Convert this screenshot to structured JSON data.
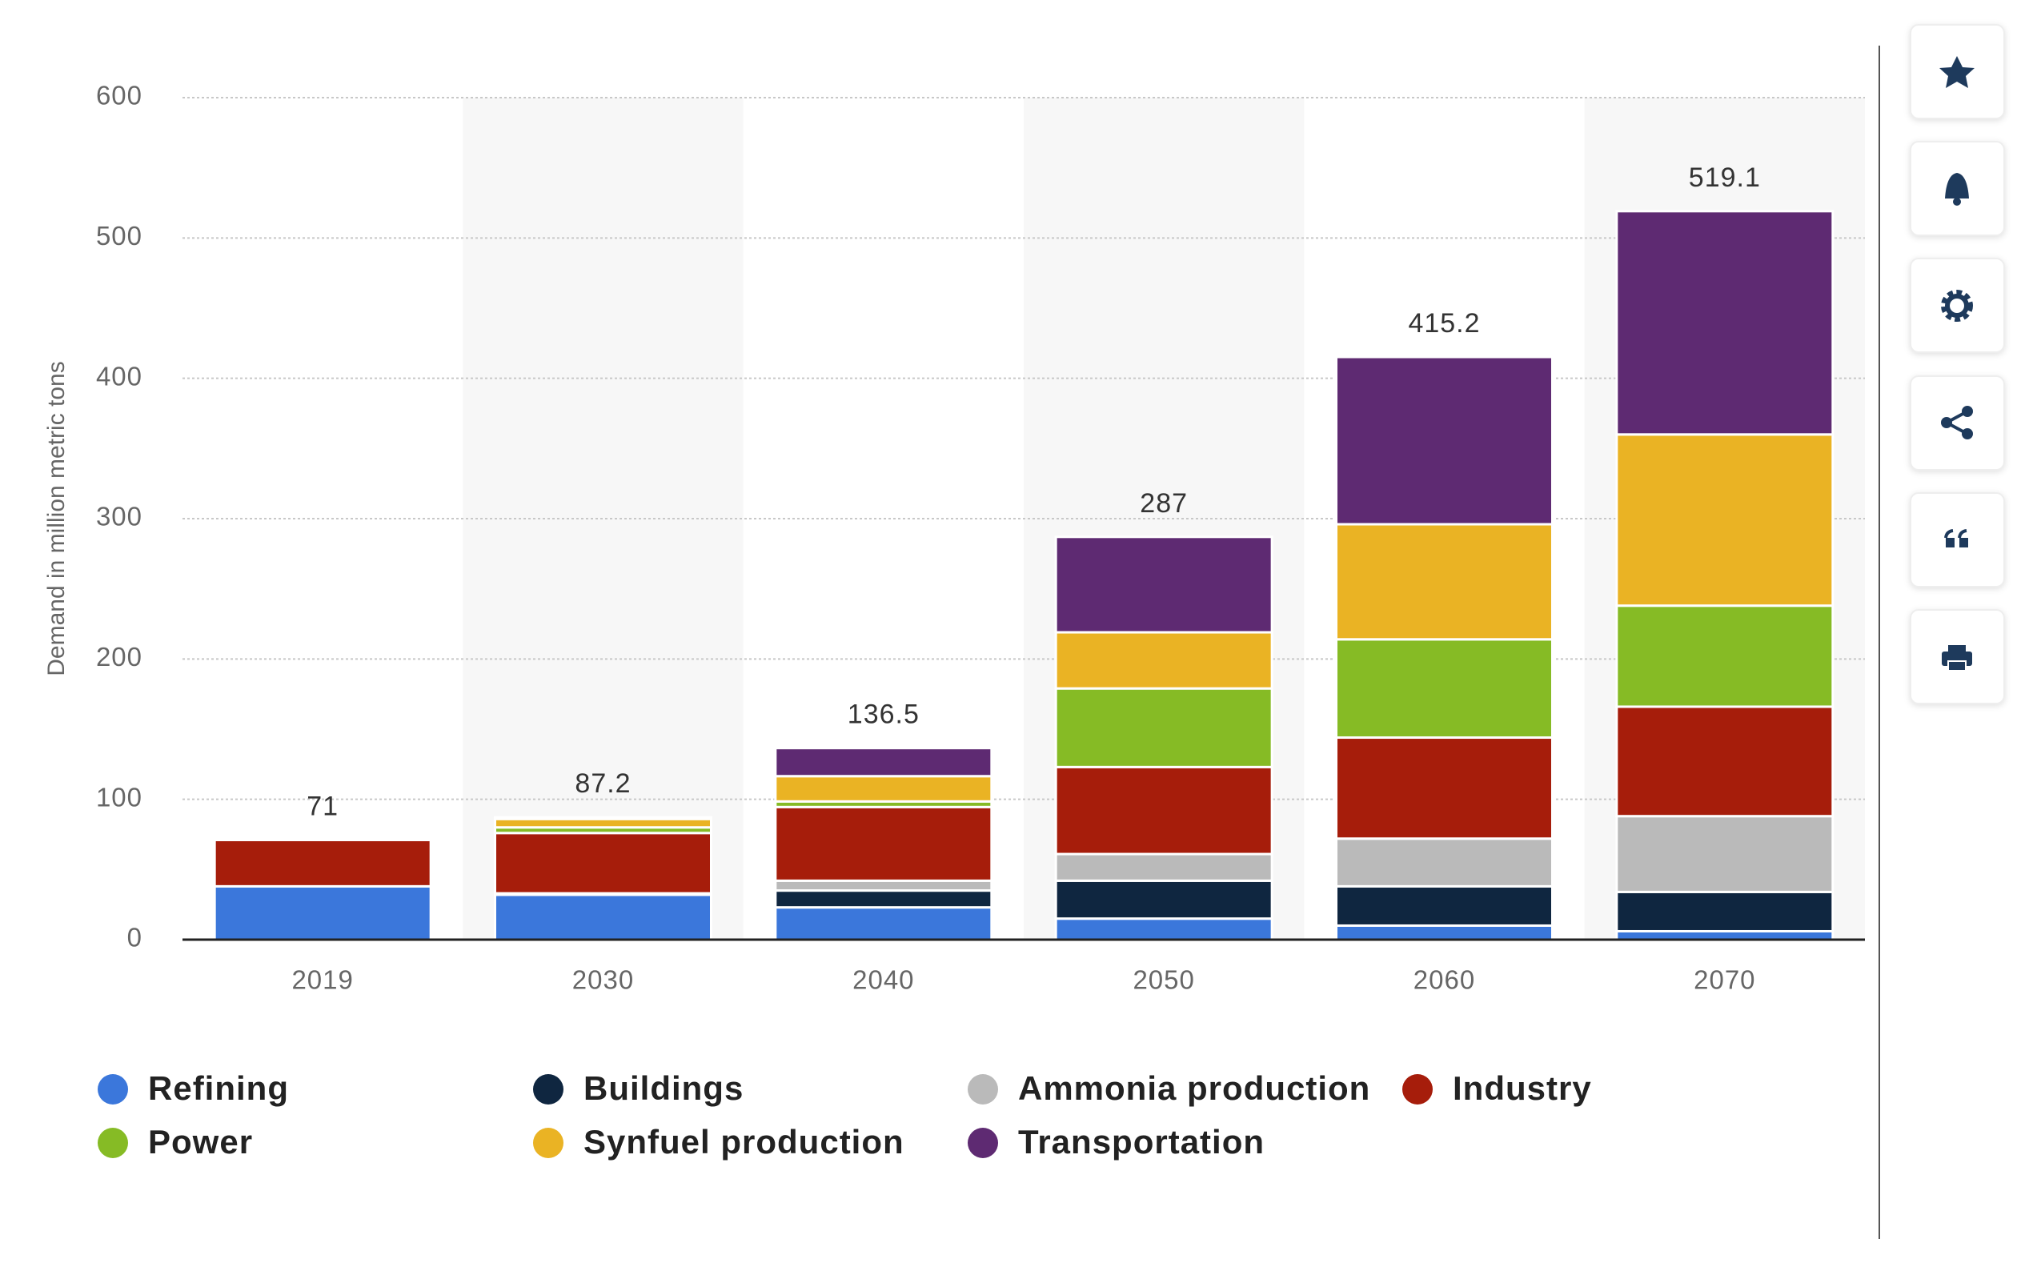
{
  "chart_data": {
    "type": "stacked_bar",
    "y_axis_label": "Demand in million metric tons",
    "categories": [
      "2019",
      "2030",
      "2040",
      "2050",
      "2060",
      "2070"
    ],
    "series": [
      {
        "name": "Refining",
        "color": "#3b77db",
        "values": [
          38,
          32,
          23,
          15,
          10,
          6
        ]
      },
      {
        "name": "Buildings",
        "color": "#0f2640",
        "values": [
          0,
          0,
          12,
          27,
          28,
          28
        ]
      },
      {
        "name": "Ammonia production",
        "color": "#bababa",
        "values": [
          0,
          1,
          7,
          19,
          34,
          54
        ]
      },
      {
        "name": "Industry",
        "color": "#a61d0b",
        "values": [
          33,
          43,
          52.5,
          62,
          72,
          78
        ]
      },
      {
        "name": "Power",
        "color": "#86bb25",
        "values": [
          0,
          4,
          4,
          56,
          70,
          72
        ]
      },
      {
        "name": "Synfuel production",
        "color": "#eab324",
        "values": [
          0,
          6,
          18,
          40,
          82,
          122
        ]
      },
      {
        "name": "Transportation",
        "color": "#5e2a72",
        "values": [
          0,
          1.2,
          20,
          68,
          119.2,
          159.1
        ]
      }
    ],
    "totals": [
      71,
      87.2,
      136.5,
      287,
      415.2,
      519.1
    ],
    "ylim": [
      0,
      600
    ],
    "yticks": [
      0,
      100,
      200,
      300,
      400,
      500,
      600
    ],
    "grid": true
  }
}
